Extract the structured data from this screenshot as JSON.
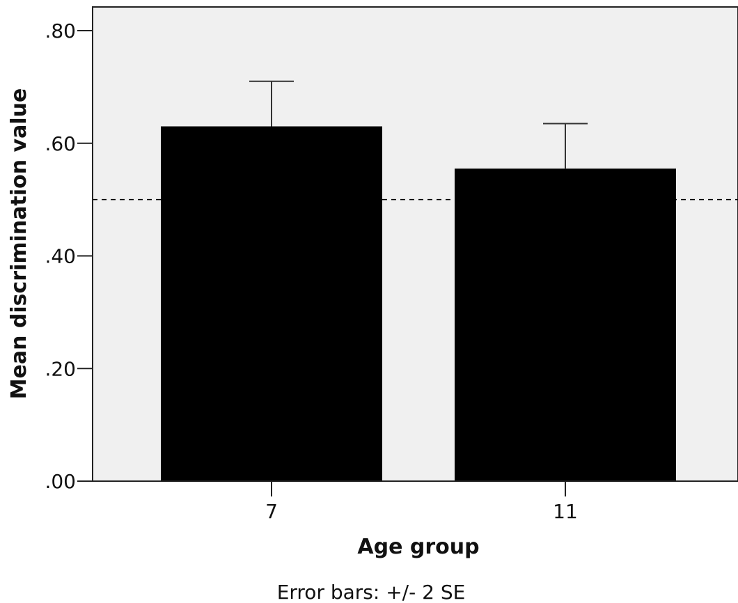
{
  "chart_data": {
    "type": "bar",
    "categories": [
      "7",
      "11"
    ],
    "values": [
      0.63,
      0.555
    ],
    "error_bars": {
      "upper": [
        0.71,
        0.635
      ],
      "lower": [
        0.55,
        0.475
      ]
    },
    "xlabel": "Age group",
    "ylabel": "Mean discrimination value",
    "ylim": [
      0,
      0.84
    ],
    "yticks": [
      0.0,
      0.2,
      0.4,
      0.6,
      0.8
    ],
    "ytick_labels": [
      ".00",
      ".20",
      ".40",
      ".60",
      ".80"
    ],
    "reference_line": 0.5,
    "footnote": "Error bars: +/- 2 SE",
    "grid": false,
    "legend": "none",
    "colors": {
      "bar": "#000000",
      "plot_background": "#f0f0f0",
      "axis": "#222222",
      "reference_line": "#000000"
    }
  }
}
